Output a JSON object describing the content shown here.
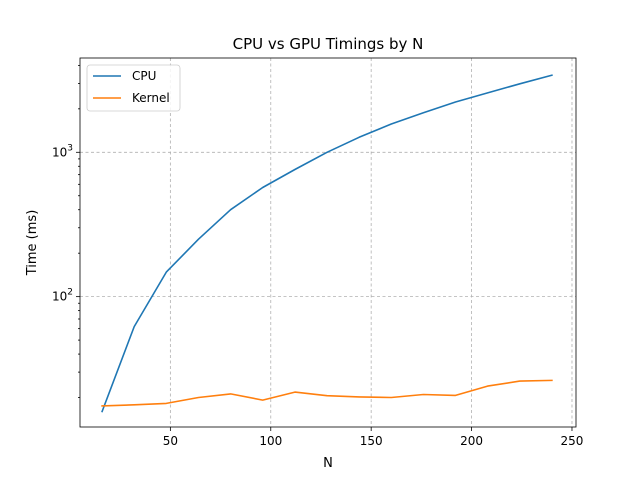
{
  "chart_data": {
    "type": "line",
    "title": "CPU vs GPU Timings by N",
    "xlabel": "N",
    "ylabel": "Time (ms)",
    "xlim": [
      5,
      252
    ],
    "ylim": [
      12.5,
      4500
    ],
    "yscale": "log",
    "grid": true,
    "legend_position": "top-left",
    "xticks": [
      {
        "value": 50,
        "label": "50"
      },
      {
        "value": 100,
        "label": "100"
      },
      {
        "value": 150,
        "label": "150"
      },
      {
        "value": 200,
        "label": "200"
      },
      {
        "value": 250,
        "label": "250"
      }
    ],
    "yticks": [
      {
        "value": 100,
        "base": "10",
        "exp": "2"
      },
      {
        "value": 1000,
        "base": "10",
        "exp": "3"
      }
    ],
    "x": [
      16,
      32,
      48,
      64,
      80,
      96,
      112,
      128,
      144,
      160,
      176,
      192,
      208,
      224,
      240
    ],
    "series": [
      {
        "name": "CPU",
        "color": "#1f77b4",
        "values": [
          16,
          62,
          148,
          250,
          400,
          570,
          760,
          1000,
          1270,
          1570,
          1880,
          2230,
          2580,
          2980,
          3420
        ]
      },
      {
        "name": "Kernel",
        "color": "#ff7f0e",
        "values": [
          17.5,
          17.8,
          18.2,
          20,
          21.2,
          19.2,
          21.8,
          20.6,
          20.2,
          20,
          21,
          20.7,
          24,
          26,
          26.3
        ]
      }
    ]
  }
}
